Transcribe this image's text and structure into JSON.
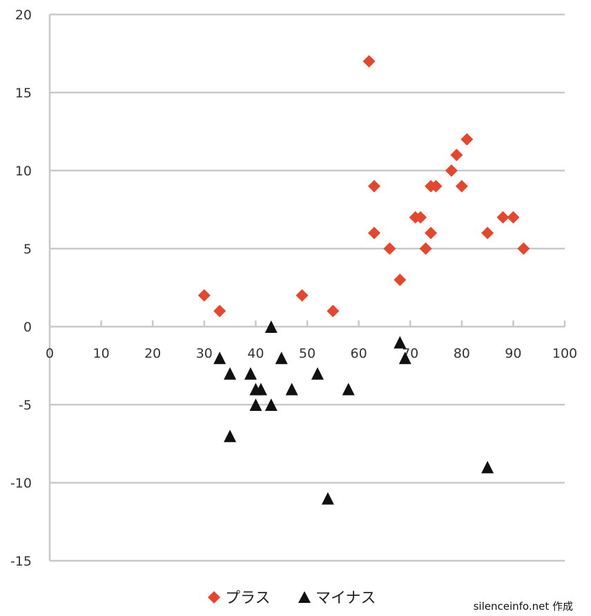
{
  "chart_data": {
    "type": "scatter",
    "xlim": [
      0,
      100
    ],
    "ylim": [
      -15,
      20
    ],
    "x_ticks": [
      "0",
      "10",
      "20",
      "30",
      "40",
      "50",
      "60",
      "70",
      "80",
      "90",
      "100"
    ],
    "y_ticks": [
      "20",
      "15",
      "10",
      "5",
      "0",
      "-5",
      "-10",
      "-15"
    ],
    "grid": "horizontal",
    "legend_position": "bottom",
    "series": [
      {
        "name": "プラス",
        "marker": "diamond",
        "color": "#e8462a",
        "points": [
          [
            30,
            2
          ],
          [
            33,
            1
          ],
          [
            49,
            2
          ],
          [
            55,
            1
          ],
          [
            62,
            17
          ],
          [
            63,
            9
          ],
          [
            63,
            6
          ],
          [
            66,
            5
          ],
          [
            68,
            3
          ],
          [
            71,
            7
          ],
          [
            72,
            7
          ],
          [
            73,
            5
          ],
          [
            74,
            9
          ],
          [
            74,
            6
          ],
          [
            75,
            9
          ],
          [
            78,
            10
          ],
          [
            79,
            11
          ],
          [
            80,
            9
          ],
          [
            81,
            12
          ],
          [
            85,
            6
          ],
          [
            88,
            7
          ],
          [
            90,
            7
          ],
          [
            92,
            5
          ]
        ]
      },
      {
        "name": "マイナス",
        "marker": "triangle",
        "color": "#111111",
        "points": [
          [
            33,
            -2
          ],
          [
            35,
            -3
          ],
          [
            35,
            -7
          ],
          [
            39,
            -3
          ],
          [
            40,
            -4
          ],
          [
            40,
            -5
          ],
          [
            41,
            -4
          ],
          [
            43,
            0
          ],
          [
            43,
            -5
          ],
          [
            45,
            -2
          ],
          [
            47,
            -4
          ],
          [
            52,
            -3
          ],
          [
            54,
            -11
          ],
          [
            58,
            -4
          ],
          [
            68,
            -1
          ],
          [
            69,
            -2
          ],
          [
            85,
            -9
          ]
        ]
      }
    ]
  },
  "legend": {
    "plus_label": "プラス",
    "minus_label": "マイナス"
  },
  "credit": "silenceinfo.net 作成"
}
